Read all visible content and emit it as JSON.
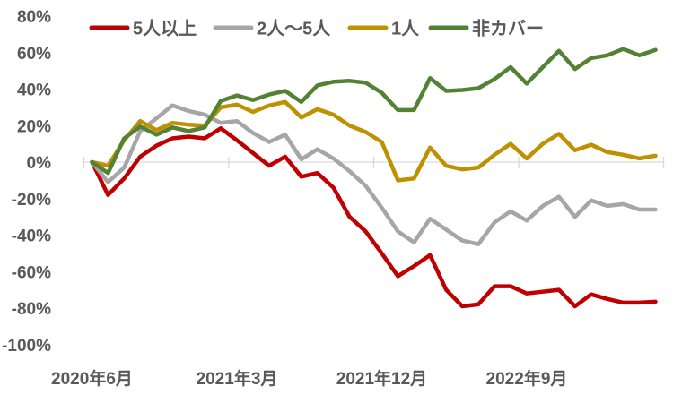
{
  "chart_data": {
    "type": "line",
    "title": "",
    "xlabel": "",
    "ylabel": "",
    "grid": false,
    "background_color": "#FFFFFF",
    "axis_text_color": "#595959",
    "zero_line_color": "#D9D9D9",
    "legend": {
      "position": "top",
      "labels": [
        "5人以上",
        "2人〜5人",
        "1人",
        "非カバー"
      ]
    },
    "x_axis": {
      "visible_tick_labels": [
        "2020年6月",
        "2021年3月",
        "2021年12月",
        "2022年9月"
      ],
      "visible_tick_indices": [
        0,
        9,
        18,
        27
      ]
    },
    "y_axis": {
      "tick_labels": [
        "80%",
        "60%",
        "40%",
        "20%",
        "0%",
        "-20%",
        "-40%",
        "-60%",
        "-80%",
        "-100%"
      ],
      "tick_values": [
        80,
        60,
        40,
        20,
        0,
        -20,
        -40,
        -60,
        -80,
        -100
      ],
      "ylim": [
        -100,
        80
      ],
      "unit": "%"
    },
    "categories": [
      "2020年6月",
      "2020年7月",
      "2020年8月",
      "2020年9月",
      "2020年10月",
      "2020年11月",
      "2020年12月",
      "2021年1月",
      "2021年2月",
      "2021年3月",
      "2021年4月",
      "2021年5月",
      "2021年6月",
      "2021年7月",
      "2021年8月",
      "2021年9月",
      "2021年10月",
      "2021年11月",
      "2021年12月",
      "2022年1月",
      "2022年2月",
      "2022年3月",
      "2022年4月",
      "2022年5月",
      "2022年6月",
      "2022年7月",
      "2022年8月",
      "2022年9月",
      "2022年10月",
      "2022年11月",
      "2022年12月",
      "2023年1月",
      "2023年2月",
      "2023年3月",
      "2023年4月",
      "2023年5月"
    ],
    "series": [
      {
        "key": "5plus",
        "name": "5人以上",
        "color": "#C00000",
        "values": [
          0,
          -18,
          -9,
          3,
          9,
          13,
          14,
          13,
          18.5,
          12,
          5,
          -2,
          3,
          -8,
          -6,
          -14,
          -30,
          -38,
          -50,
          -62.5,
          -57,
          -51,
          -70,
          -79,
          -78,
          -68,
          -68,
          -72,
          -71,
          -70,
          -79,
          -72.5,
          -75,
          -77,
          -77,
          -76.5
        ]
      },
      {
        "key": "2to5",
        "name": "2人〜5人",
        "color": "#A6A6A6",
        "values": [
          0,
          -11,
          -3,
          17,
          24,
          31,
          28,
          26,
          21.5,
          22.5,
          16,
          11,
          15,
          1.5,
          7,
          2,
          -5,
          -13,
          -25,
          -38,
          -44,
          -31,
          -37,
          -43,
          -45,
          -33,
          -27,
          -32,
          -24,
          -19,
          -30,
          -21,
          -24,
          -23,
          -26,
          -26
        ]
      },
      {
        "key": "1person",
        "name": "1人",
        "color": "#BF9000",
        "values": [
          0,
          -2,
          12,
          22.5,
          17.5,
          21.5,
          20.5,
          20,
          30,
          31.5,
          27.5,
          31,
          33,
          24.5,
          29,
          26,
          20,
          16.5,
          11,
          -10,
          -9,
          8,
          -2,
          -4,
          -3,
          4,
          10,
          2,
          10,
          15.5,
          6.5,
          9.5,
          5.5,
          4,
          2,
          3.5
        ]
      },
      {
        "key": "uncovered",
        "name": "非カバー",
        "color": "#548235",
        "values": [
          0,
          -6,
          13,
          19.5,
          15,
          19,
          17,
          19,
          33.5,
          36.5,
          34,
          37,
          39,
          33,
          42,
          44,
          44.5,
          43.5,
          38,
          28.5,
          28.5,
          46,
          39,
          39.5,
          40.5,
          45.5,
          52,
          43,
          52,
          61,
          51,
          57,
          58.5,
          62,
          58.5,
          61.5
        ]
      }
    ]
  }
}
